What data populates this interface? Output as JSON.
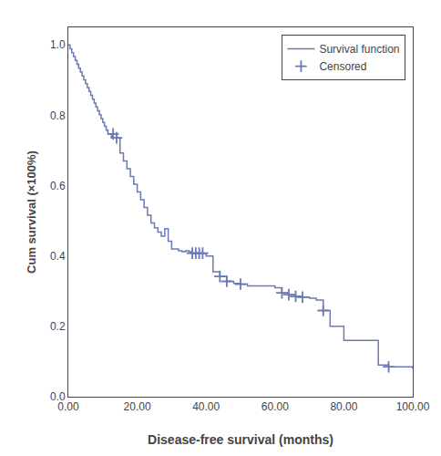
{
  "chart_data": {
    "type": "step",
    "xlabel": "Disease-free survival (months)",
    "ylabel": "Cum survival (×100%)",
    "xlim": [
      0,
      100
    ],
    "ylim": [
      0.0,
      1.05
    ],
    "xticks": [
      {
        "value": 0.0,
        "label": "0.00"
      },
      {
        "value": 20.0,
        "label": "20.00"
      },
      {
        "value": 40.0,
        "label": "40.00"
      },
      {
        "value": 60.0,
        "label": "60.00"
      },
      {
        "value": 80.0,
        "label": "80.00"
      },
      {
        "value": 100.0,
        "label": "100.00"
      }
    ],
    "yticks": [
      {
        "value": 0.0,
        "label": "0.0"
      },
      0.2,
      0.4,
      0.6,
      0.8,
      {
        "value": 1.0,
        "label": "1.0"
      }
    ],
    "grid": false,
    "legend": "upper right",
    "series": [
      {
        "name": "Survival function",
        "type": "step",
        "color": "#6b7ab5",
        "x": [
          0,
          0.5,
          1.0,
          1.5,
          2.0,
          2.5,
          3.0,
          3.5,
          4.0,
          4.5,
          5.0,
          5.5,
          6.0,
          6.5,
          7.0,
          7.5,
          8.0,
          8.5,
          9.0,
          9.5,
          10.0,
          10.5,
          11.0,
          11.5,
          12.0,
          12.5,
          13.0,
          14.0,
          15.0,
          16.0,
          17.0,
          18.0,
          19.0,
          20.0,
          21.0,
          22.0,
          23.0,
          24.0,
          25.0,
          26.0,
          27.0,
          28.0,
          29.0,
          30.0,
          32.0,
          33.0,
          34.0,
          35.0,
          36.0,
          37.0,
          38.0,
          39.0,
          40.0,
          42.0,
          44.0,
          46.0,
          48.0,
          50.0,
          52.0,
          54.0,
          56.0,
          58.0,
          60.0,
          62.0,
          64.0,
          66.0,
          68.0,
          70.0,
          72.0,
          74.0,
          76.0,
          80.0,
          85.0,
          90.0,
          93.0,
          100.0
        ],
        "values": [
          1.0,
          0.989,
          0.978,
          0.967,
          0.956,
          0.945,
          0.934,
          0.923,
          0.912,
          0.901,
          0.89,
          0.879,
          0.868,
          0.857,
          0.846,
          0.835,
          0.824,
          0.813,
          0.802,
          0.791,
          0.78,
          0.769,
          0.758,
          0.747,
          0.747,
          0.736,
          0.747,
          0.736,
          0.693,
          0.67,
          0.648,
          0.626,
          0.604,
          0.582,
          0.56,
          0.538,
          0.516,
          0.494,
          0.48,
          0.468,
          0.456,
          0.478,
          0.442,
          0.42,
          0.415,
          0.412,
          0.415,
          0.412,
          0.408,
          0.408,
          0.408,
          0.408,
          0.4,
          0.355,
          0.342,
          0.328,
          0.322,
          0.32,
          0.315,
          0.315,
          0.315,
          0.315,
          0.31,
          0.295,
          0.29,
          0.285,
          0.283,
          0.28,
          0.275,
          0.245,
          0.2,
          0.16,
          0.16,
          0.09,
          0.085,
          0.08
        ]
      },
      {
        "name": "Censored",
        "type": "scatter",
        "marker": "plus",
        "color": "#6b7ab5",
        "x": [
          13.0,
          14.0,
          36.0,
          37.0,
          38.0,
          39.0,
          44.0,
          46.0,
          50.0,
          62.0,
          64.0,
          66.0,
          68.0,
          74.0,
          93.0
        ],
        "values": [
          0.747,
          0.736,
          0.408,
          0.408,
          0.408,
          0.408,
          0.342,
          0.328,
          0.32,
          0.295,
          0.29,
          0.285,
          0.283,
          0.245,
          0.085
        ]
      }
    ]
  }
}
